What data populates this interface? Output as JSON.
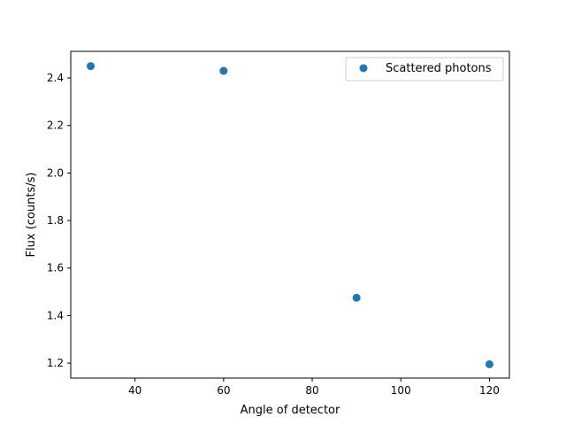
{
  "chart_data": {
    "type": "scatter",
    "title": "",
    "xlabel": "Angle of detector",
    "ylabel": "Flux (counts/s)",
    "xlim": [
      25.5,
      124.5
    ],
    "ylim": [
      1.137,
      2.512
    ],
    "xticks": [
      40,
      60,
      80,
      100,
      120
    ],
    "yticks": [
      1.2,
      1.4,
      1.6,
      1.8,
      2.0,
      2.2,
      2.4
    ],
    "xtick_labels": [
      "40",
      "60",
      "80",
      "100",
      "120"
    ],
    "ytick_labels": [
      "1.2",
      "1.4",
      "1.6",
      "1.8",
      "2.0",
      "2.2",
      "2.4"
    ],
    "grid": false,
    "legend": "top-right",
    "series": [
      {
        "name": "Scattered photons",
        "color": "#1f77b4",
        "x": [
          30,
          60,
          90,
          120
        ],
        "y": [
          2.45,
          2.43,
          1.475,
          1.195
        ]
      }
    ]
  }
}
